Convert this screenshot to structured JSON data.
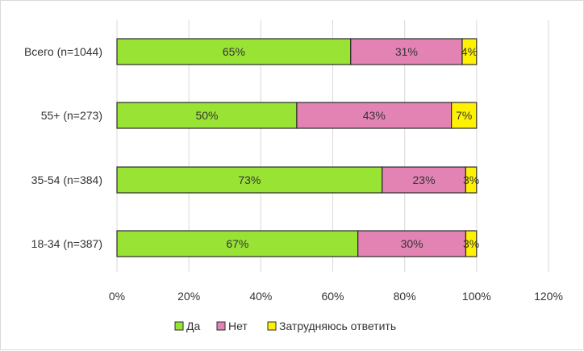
{
  "chart_data": {
    "type": "bar",
    "orientation": "horizontal",
    "stacked": true,
    "categories": [
      "Всего (n=1044)",
      "55+ (n=273)",
      "35-54 (n=384)",
      "18-34 (n=387)"
    ],
    "series": [
      {
        "name": "Да",
        "color": "#99e335",
        "values": [
          65,
          50,
          73,
          67
        ],
        "labels": [
          "65%",
          "50%",
          "73%",
          "67%"
        ]
      },
      {
        "name": "Нет",
        "color": "#e283b3",
        "values": [
          31,
          43,
          23,
          30
        ],
        "labels": [
          "31%",
          "43%",
          "23%",
          "30%"
        ]
      },
      {
        "name": "Затрудняюсь ответить",
        "color": "#fff200",
        "values": [
          4,
          7,
          3,
          3
        ],
        "labels": [
          "4%",
          "7%",
          "3%",
          "3%"
        ]
      }
    ],
    "xlim": [
      0,
      120
    ],
    "x_ticks": [
      "0%",
      "20%",
      "40%",
      "60%",
      "80%",
      "100%",
      "120%"
    ],
    "grid": true,
    "legend_position": "bottom"
  }
}
